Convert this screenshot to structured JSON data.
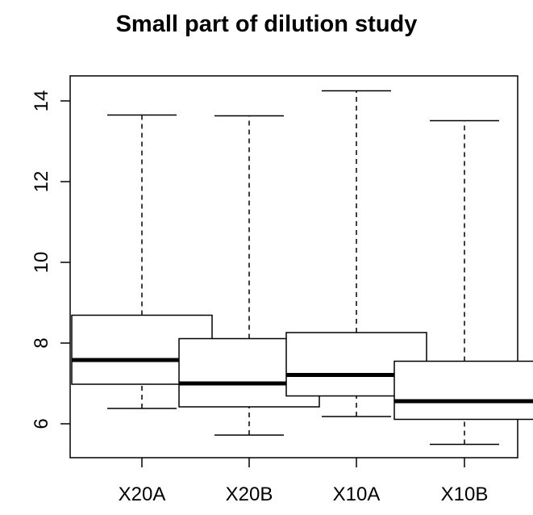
{
  "chart_data": {
    "type": "boxplot",
    "title": "Small part of dilution study",
    "xlabel": "",
    "ylabel": "",
    "categories": [
      "X20A",
      "X20B",
      "X10A",
      "X10B"
    ],
    "boxes": [
      {
        "min": 6.38,
        "q1": 6.98,
        "median": 7.58,
        "q3": 8.69,
        "max": 13.65
      },
      {
        "min": 5.72,
        "q1": 6.42,
        "median": 7.0,
        "q3": 8.11,
        "max": 13.63
      },
      {
        "min": 6.18,
        "q1": 6.69,
        "median": 7.21,
        "q3": 8.26,
        "max": 14.25
      },
      {
        "min": 5.49,
        "q1": 6.11,
        "median": 6.56,
        "q3": 7.55,
        "max": 13.51
      }
    ],
    "yticks": [
      6,
      8,
      10,
      12,
      14
    ],
    "ylim": [
      5.2,
      14.6
    ],
    "grid": false,
    "box_color": "#000000",
    "background": "#ffffff"
  }
}
